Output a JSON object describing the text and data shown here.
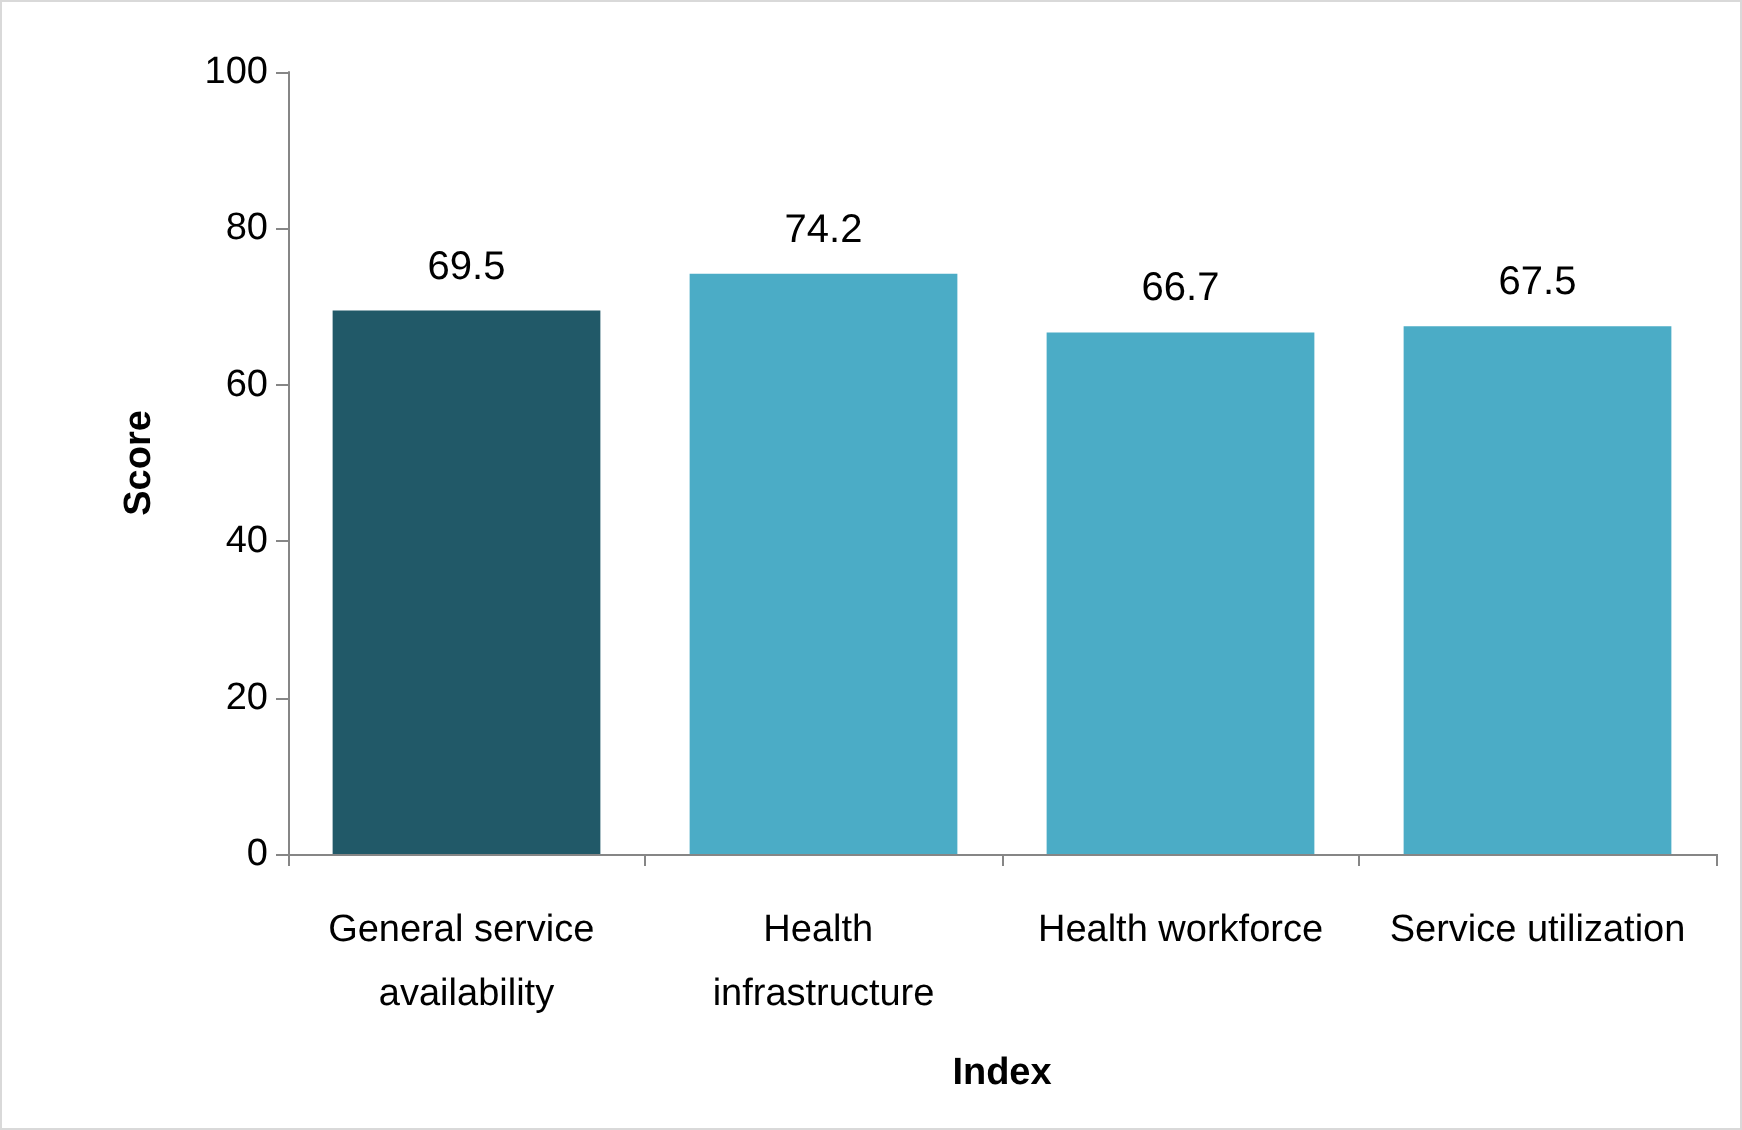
{
  "chart_data": {
    "type": "bar",
    "xlabel": "Index",
    "ylabel": "Score",
    "categories": [
      "General service availability",
      "Health infrastructure",
      "Health workforce",
      "Service utilization"
    ],
    "values": [
      69.5,
      74.2,
      66.7,
      67.5
    ],
    "colors": [
      "#215968",
      "#4bacc6",
      "#4bacc6",
      "#4bacc6"
    ],
    "ylim": [
      0,
      100
    ],
    "yticks": [
      0,
      20,
      40,
      60,
      80,
      100
    ],
    "grid": false,
    "data_labels": true
  }
}
